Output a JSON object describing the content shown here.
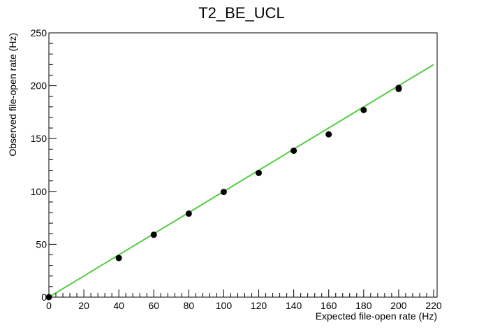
{
  "chart_data": {
    "type": "scatter",
    "title": "T2_BE_UCL",
    "xlabel": "Expected file-open rate (Hz)",
    "ylabel": "Observed file-open rate (Hz)",
    "xlim": [
      0,
      220
    ],
    "ylim": [
      0,
      250
    ],
    "x_ticks": [
      "0",
      "20",
      "40",
      "60",
      "80",
      "100",
      "120",
      "140",
      "160",
      "180",
      "200",
      "220"
    ],
    "y_ticks": [
      "0",
      "50",
      "100",
      "150",
      "200",
      "250"
    ],
    "grid": false,
    "legend": "none",
    "series": [
      {
        "type": "points",
        "color": "#000000",
        "points": [
          {
            "x": 0,
            "y": 0
          },
          {
            "x": 40,
            "y": 37
          },
          {
            "x": 60,
            "y": 59
          },
          {
            "x": 80,
            "y": 79
          },
          {
            "x": 100,
            "y": 99.5
          },
          {
            "x": 120,
            "y": 117.5
          },
          {
            "x": 140,
            "y": 138.5
          },
          {
            "x": 160,
            "y": 154
          },
          {
            "x": 180,
            "y": 177
          },
          {
            "x": 200,
            "y": 198
          },
          {
            "x": 200,
            "y": 197
          }
        ]
      },
      {
        "type": "fit-line",
        "color": "#55cc44",
        "points": [
          {
            "x": 0,
            "y": 0
          },
          {
            "x": 220,
            "y": 220
          }
        ]
      }
    ]
  }
}
